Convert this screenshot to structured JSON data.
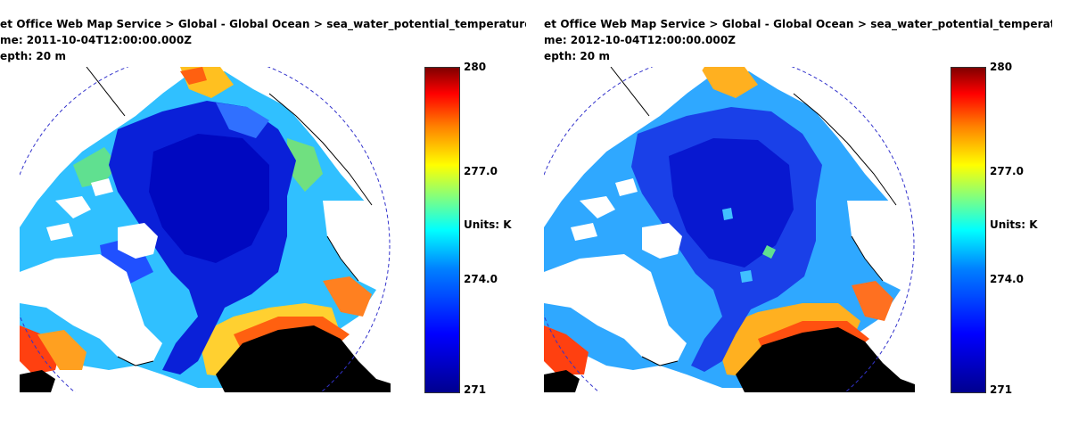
{
  "panels": [
    {
      "header": {
        "service": "et Office Web Map Service > Global - Global Ocean > sea_water_potential_temperature",
        "time": "2011-10-04T12:00:00.000Z",
        "time_label_fragment": "me:",
        "depth": "20 m",
        "depth_label_fragment": "epth:"
      },
      "colorbar": {
        "max": "280",
        "upper_mid": "277.0",
        "units": "Units: K",
        "lower_mid": "274.0",
        "min": "271"
      },
      "central_basin_temperature": "cold (~271–272 K)"
    },
    {
      "header": {
        "service": "et Office Web Map Service > Global - Global Ocean > sea_water_potential_temperature",
        "time": "2012-10-04T12:00:00.000Z",
        "time_label_fragment": "me:",
        "depth": "20 m",
        "depth_label_fragment": "epth:"
      },
      "colorbar": {
        "max": "280",
        "upper_mid": "277.0",
        "units": "Units: K",
        "lower_mid": "274.0",
        "min": "271"
      },
      "central_basin_temperature": "cold (~271–272 K), with warmer patches"
    }
  ],
  "colors": {
    "cold": "#0000cc",
    "land": "#ffffff",
    "landmass_black": "#000000",
    "boundary": "#3333cc",
    "warm": "#ff2200"
  }
}
